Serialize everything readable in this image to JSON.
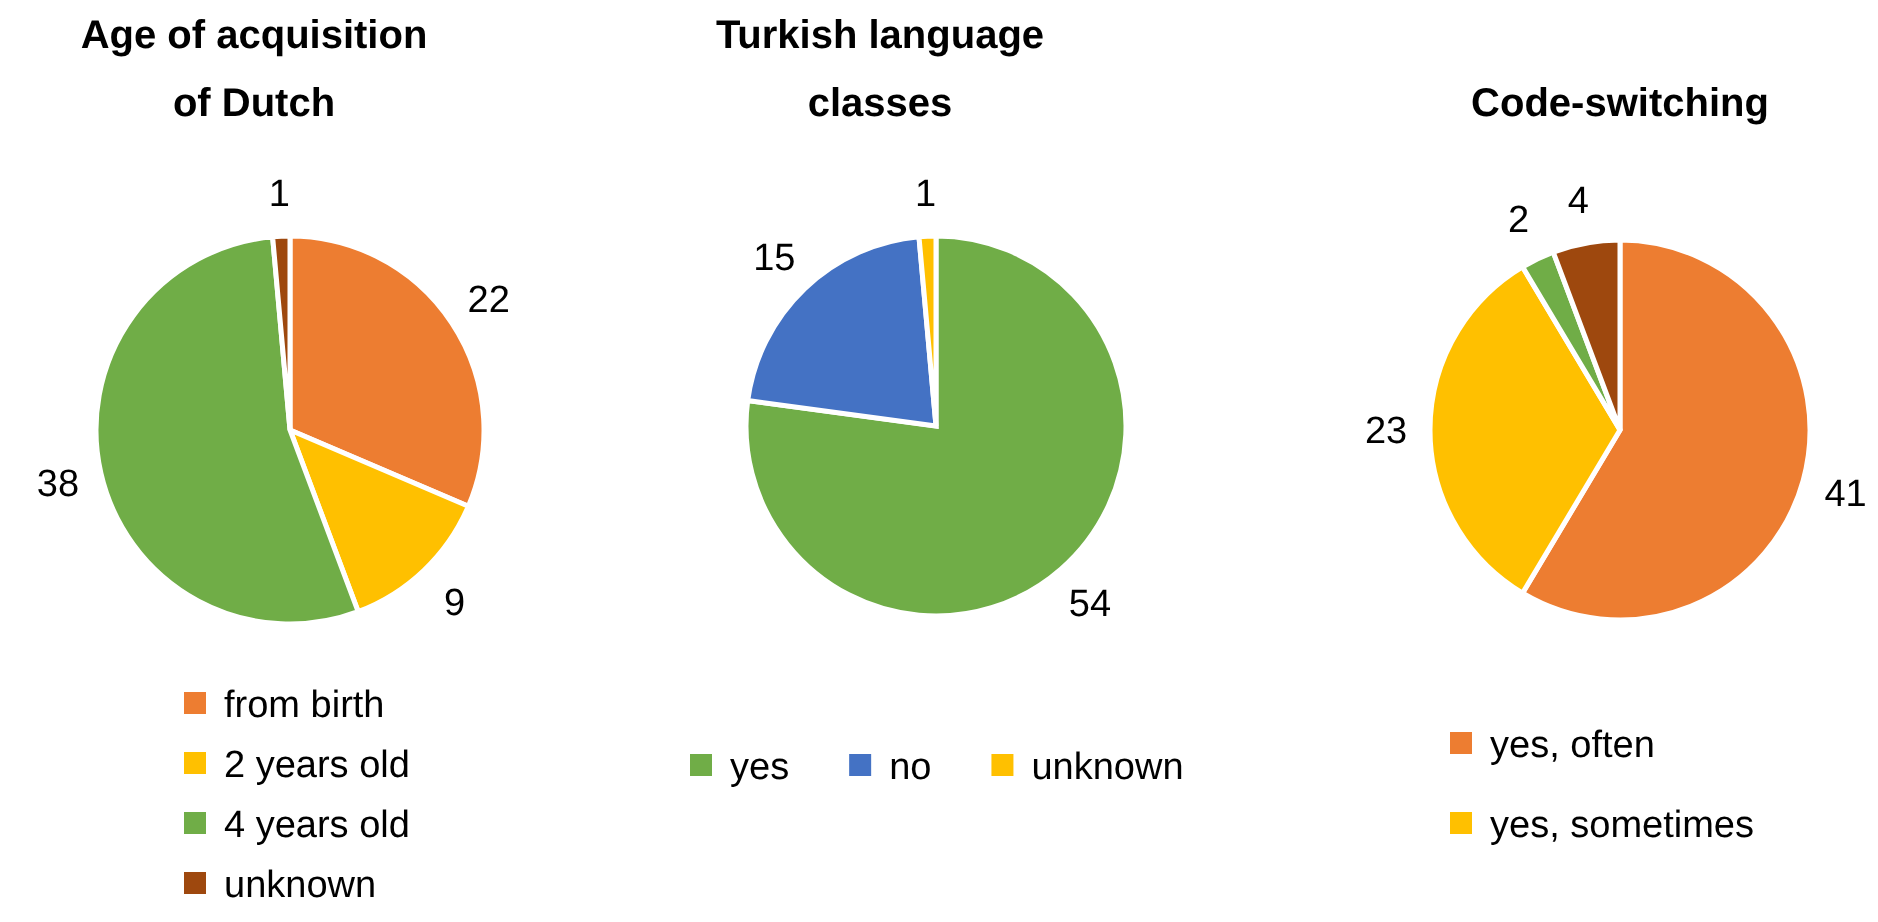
{
  "chart_data": [
    {
      "type": "pie",
      "title": "Age of acquisition of Dutch",
      "categories": [
        "from birth",
        "2 years old",
        "4 years old",
        "unknown"
      ],
      "values": [
        22,
        9,
        38,
        1
      ],
      "colors": [
        "#ed7d31",
        "#ffc000",
        "#70ad47",
        "#9e480e"
      ],
      "data_labels": true,
      "legend": "bottom"
    },
    {
      "type": "pie",
      "title": "Turkish language classes",
      "categories": [
        "yes",
        "no",
        "unknown"
      ],
      "values": [
        54,
        15,
        1
      ],
      "colors": [
        "#70ad47",
        "#4472c4",
        "#ffc000"
      ],
      "data_labels": true,
      "legend": "bottom"
    },
    {
      "type": "pie",
      "title": "Code-switching",
      "categories": [
        "yes, often",
        "yes, sometimes",
        null,
        null
      ],
      "values": [
        41,
        23,
        2,
        4
      ],
      "colors": [
        "#ed7d31",
        "#ffc000",
        "#70ad47",
        "#9e480e"
      ],
      "data_labels": true,
      "legend": "bottom"
    }
  ]
}
